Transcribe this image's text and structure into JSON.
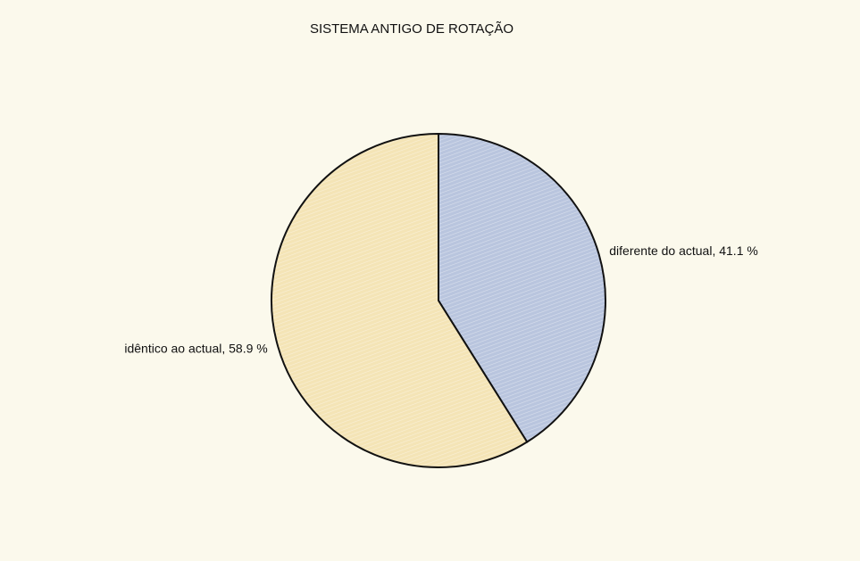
{
  "chart_data": {
    "type": "pie",
    "title": "SISTEMA ANTIGO DE ROTAÇÃO",
    "values": [
      41.1,
      58.9
    ],
    "value_labels": [
      "diferente do actual, 41.1 %",
      "idêntico ao actual, 58.9 %"
    ],
    "colors": [
      "#b9c5de",
      "#f4e4b6"
    ]
  }
}
